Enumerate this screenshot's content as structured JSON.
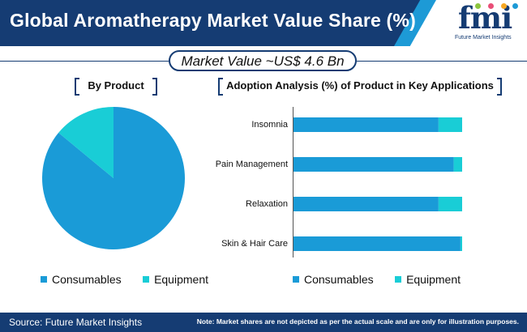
{
  "header": {
    "title": "Global Aromatherapy Market Value Share (%)",
    "logo_text": "fmi",
    "logo_subtitle": "Future Market Insights"
  },
  "market_value": "Market Value ~US$ 4.6 Bn",
  "sections": {
    "pie_title": "By Product",
    "bar_title": "Adoption Analysis (%) of Product in Key Applications"
  },
  "colors": {
    "consumables": "#1a9bd7",
    "equipment": "#19cdd6",
    "navy": "#153c73"
  },
  "chart_data": [
    {
      "type": "pie",
      "title": "By Product",
      "categories": [
        "Consumables",
        "Equipment"
      ],
      "values": [
        86,
        14
      ],
      "legend_position": "bottom"
    },
    {
      "type": "bar",
      "orientation": "horizontal",
      "stacked": true,
      "title": "Adoption Analysis (%) of Product in Key Applications",
      "categories": [
        "Insomnia",
        "Pain Management",
        "Relaxation",
        "Skin & Hair Care"
      ],
      "series": [
        {
          "name": "Consumables",
          "values": [
            86,
            95,
            86,
            99
          ]
        },
        {
          "name": "Equipment",
          "values": [
            14,
            5,
            14,
            1
          ]
        }
      ],
      "xlim": [
        0,
        100
      ],
      "legend_position": "bottom"
    }
  ],
  "legend": {
    "consumables": "Consumables",
    "equipment": "Equipment"
  },
  "footer": {
    "source": "Source: Future Market Insights",
    "note": "Note: Market shares are not depicted as per the actual scale and are only for illustration purposes."
  }
}
